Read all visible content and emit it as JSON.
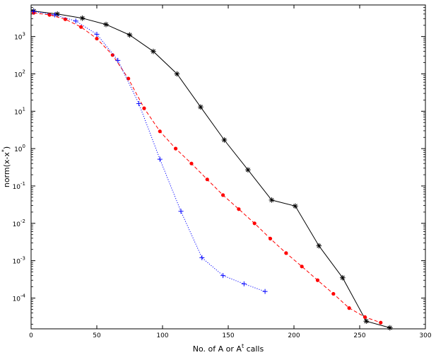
{
  "chart_data": {
    "type": "line",
    "title": "",
    "xlabel": "No. of A or A",
    "xlabel_sup": "t",
    "xlabel_suffix": " calls",
    "ylabel": "norm(x-x",
    "ylabel_sup": "*",
    "ylabel_suffix": ")",
    "xlim": [
      0,
      300
    ],
    "ylim": [
      1.5e-05,
      7000
    ],
    "yscale": "log",
    "grid": false,
    "legend": "none",
    "x_ticks": [
      0,
      50,
      100,
      150,
      200,
      250,
      300
    ],
    "x_tick_labels": [
      "0",
      "50",
      "100",
      "150",
      "200",
      "250",
      "300"
    ],
    "y_ticks": [
      0.0001,
      0.001,
      0.01,
      0.1,
      1,
      10,
      100,
      1000
    ],
    "y_tick_labels": [
      {
        "base": "10",
        "exp": "-4"
      },
      {
        "base": "10",
        "exp": "-3"
      },
      {
        "base": "10",
        "exp": "-2"
      },
      {
        "base": "10",
        "exp": "-1"
      },
      {
        "base": "10",
        "exp": "0"
      },
      {
        "base": "10",
        "exp": "1"
      },
      {
        "base": "10",
        "exp": "2"
      },
      {
        "base": "10",
        "exp": "3"
      }
    ],
    "series": [
      {
        "color": "#000000",
        "line_style": "solid",
        "marker": "asterisk",
        "x": [
          2,
          20,
          39,
          57,
          75,
          93,
          111,
          129,
          147,
          165,
          183,
          201,
          219,
          237,
          255,
          273
        ],
        "y": [
          4800,
          4000,
          3100,
          2100,
          1100,
          400,
          100,
          13,
          1.7,
          0.27,
          0.042,
          0.029,
          0.0025,
          0.00035,
          2.4e-05,
          1.6e-05
        ]
      },
      {
        "color": "#ff0000",
        "line_style": "dashed",
        "marker": "dot",
        "x": [
          2,
          14,
          26,
          38,
          50,
          62,
          74,
          86,
          98,
          110,
          122,
          134,
          146,
          158,
          170,
          182,
          194,
          206,
          218,
          230,
          242,
          254,
          266
        ],
        "y": [
          4300,
          3800,
          2900,
          1800,
          880,
          320,
          75,
          12,
          2.9,
          1.0,
          0.4,
          0.15,
          0.057,
          0.024,
          0.01,
          0.0039,
          0.0016,
          0.0007,
          0.0003,
          0.00013,
          5.4e-05,
          3.1e-05,
          2.2e-05
        ]
      },
      {
        "color": "#0000ff",
        "line_style": "dotted",
        "marker": "plus",
        "x": [
          2,
          18,
          34,
          50,
          66,
          82,
          98,
          114,
          130,
          146,
          162,
          178
        ],
        "y": [
          4700,
          3800,
          2600,
          1150,
          230,
          16,
          0.52,
          0.021,
          0.0012,
          0.0004,
          0.00024,
          0.00015
        ]
      }
    ]
  }
}
